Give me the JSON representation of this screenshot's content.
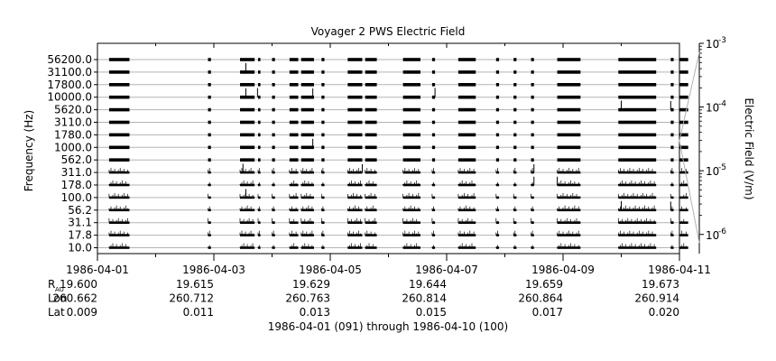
{
  "chart_data": {
    "type": "line",
    "title": "Voyager 2 PWS Electric Field",
    "ylabel": "Frequency (Hz)",
    "channels": [
      "56200.0",
      "31100.0",
      "17800.0",
      "10000.0",
      "5620.0",
      "3110.0",
      "1780.0",
      "1000.0",
      "562.0",
      "311.0",
      "178.0",
      "100.0",
      "56.2",
      "31.1",
      "17.8",
      "10.0"
    ],
    "xlim": [
      "1986-04-01",
      "1986-04-11"
    ],
    "x_ticks": [
      "1986-04-01",
      "1986-04-03",
      "1986-04-05",
      "1986-04-07",
      "1986-04-09",
      "1986-04-11"
    ],
    "ephemeris": {
      "rows": [
        {
          "label": "R",
          "sub": "AU",
          "values": [
            "19.600",
            "19.615",
            "19.629",
            "19.644",
            "19.659",
            "19.673"
          ]
        },
        {
          "label": "Lon",
          "sub": "",
          "values": [
            "260.662",
            "260.712",
            "260.763",
            "260.814",
            "260.864",
            "260.914"
          ]
        },
        {
          "label": "Lat",
          "sub": "",
          "values": [
            "0.009",
            "0.011",
            "0.013",
            "0.015",
            "0.017",
            "0.020"
          ]
        }
      ]
    },
    "xlabel": "1986-04-01 (091) through 1986-04-10 (100)",
    "colorbar": {
      "label": "Electric Field (V/m)",
      "ticks": [
        {
          "base": "10",
          "exp": "-3",
          "value": 0.001
        },
        {
          "base": "10",
          "exp": "-4",
          "value": 0.0001
        },
        {
          "base": "10",
          "exp": "-5",
          "value": 1e-05
        },
        {
          "base": "10",
          "exp": "-6",
          "value": 1e-06
        }
      ],
      "scale": "log",
      "range": [
        5e-07,
        0.001
      ]
    },
    "data_segments_days": [
      [
        0.2,
        0.55
      ],
      [
        1.9,
        1.95
      ],
      [
        2.45,
        2.7
      ],
      [
        2.76,
        2.8
      ],
      [
        3.0,
        3.05
      ],
      [
        3.3,
        3.45
      ],
      [
        3.5,
        3.72
      ],
      [
        3.85,
        3.9
      ],
      [
        4.3,
        4.55
      ],
      [
        4.6,
        4.8
      ],
      [
        5.25,
        5.55
      ],
      [
        5.75,
        5.8
      ],
      [
        6.2,
        6.5
      ],
      [
        6.85,
        6.9
      ],
      [
        7.15,
        7.2
      ],
      [
        7.45,
        7.5
      ],
      [
        7.9,
        8.3
      ],
      [
        8.95,
        9.6
      ],
      [
        9.85,
        9.9
      ],
      [
        10.0,
        10.15
      ]
    ],
    "spikes": [
      {
        "day": 2.55,
        "channel": "31100.0",
        "value": 8e-05
      },
      {
        "day": 2.55,
        "channel": "10000.0",
        "value": 7e-05
      },
      {
        "day": 2.75,
        "channel": "10000.0",
        "value": 9e-05
      },
      {
        "day": 3.7,
        "channel": "10000.0",
        "value": 6e-05
      },
      {
        "day": 3.7,
        "channel": "1000.0",
        "value": 5e-05
      },
      {
        "day": 5.8,
        "channel": "10000.0",
        "value": 0.0001
      },
      {
        "day": 9.0,
        "channel": "5620.0",
        "value": 9e-05
      },
      {
        "day": 9.0,
        "channel": "56.2",
        "value": 8e-05
      },
      {
        "day": 9.85,
        "channel": "5620.0",
        "value": 6e-05
      },
      {
        "day": 9.85,
        "channel": "56.2",
        "value": 5e-05
      },
      {
        "day": 2.5,
        "channel": "311.0",
        "value": 6e-05
      },
      {
        "day": 2.55,
        "channel": "100.0",
        "value": 5e-05
      },
      {
        "day": 4.55,
        "channel": "311.0",
        "value": 4e-05
      },
      {
        "day": 7.5,
        "channel": "311.0",
        "value": 4e-05
      },
      {
        "day": 7.5,
        "channel": "178.0",
        "value": 4e-05
      },
      {
        "day": 7.9,
        "channel": "178.0",
        "value": 4e-05
      }
    ]
  }
}
